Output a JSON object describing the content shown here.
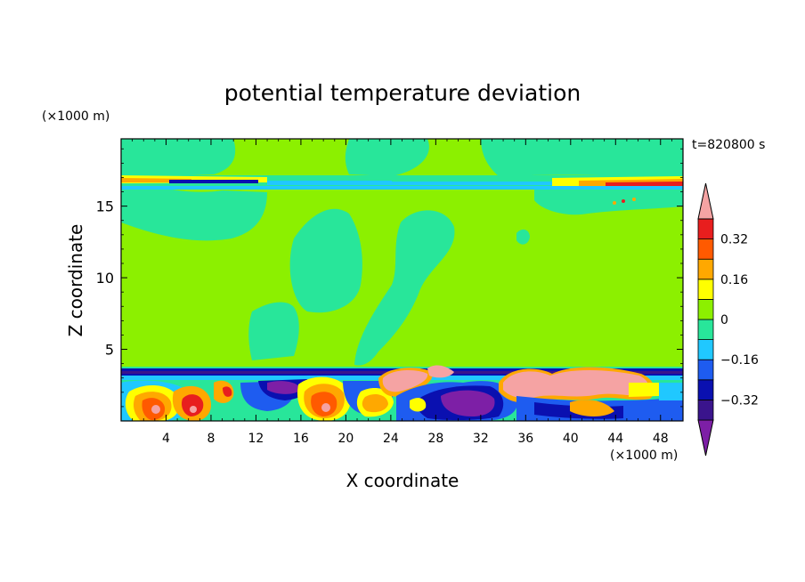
{
  "chart_data": {
    "type": "heatmap",
    "title": "potential temperature deviation",
    "xlabel": "X coordinate",
    "ylabel": "Z coordinate",
    "x_unit": "(×1000 m)",
    "y_unit": "(×1000 m)",
    "time_label": "t=820800 s",
    "xlim": [
      0,
      50
    ],
    "ylim": [
      0,
      19.7
    ],
    "x_ticks": [
      4,
      8,
      12,
      16,
      20,
      24,
      28,
      32,
      36,
      40,
      44,
      48
    ],
    "y_ticks": [
      5,
      10,
      15
    ],
    "grid": false,
    "colorbar": {
      "levels": [
        -0.4,
        -0.32,
        -0.24,
        -0.16,
        -0.08,
        0,
        0.08,
        0.16,
        0.24,
        0.32,
        0.4
      ],
      "tick_labels": [
        "0.32",
        "0.16",
        "0",
        "−0.16",
        "−0.32"
      ],
      "tick_values": [
        0.32,
        0.16,
        0,
        -0.16,
        -0.32
      ],
      "colors": [
        "#7d1fa6",
        "#3a148c",
        "#0a10b0",
        "#1e5cf0",
        "#20c8ff",
        "#28e69a",
        "#8cf000",
        "#ffff00",
        "#ffa800",
        "#ff5a00",
        "#e81e1e",
        "#f5a3a3"
      ]
    }
  }
}
